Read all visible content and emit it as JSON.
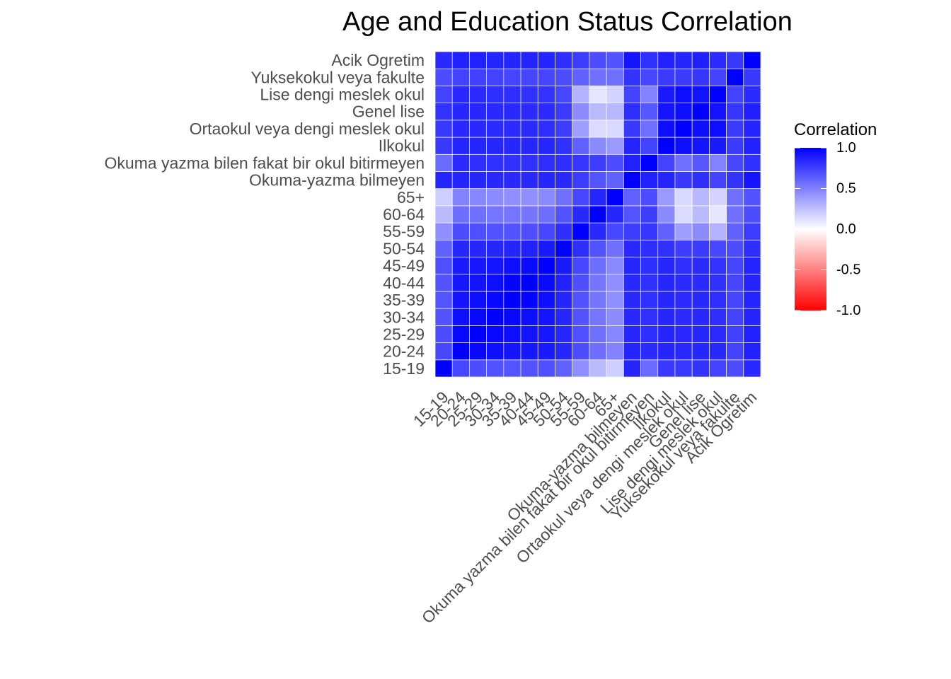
{
  "chart_data": {
    "type": "heatmap",
    "title": "Age and Education Status Correlation",
    "labels": [
      "15-19",
      "20-24",
      "25-29",
      "30-34",
      "35-39",
      "40-44",
      "45-49",
      "50-54",
      "55-59",
      "60-64",
      "65+",
      "Okuma-yazma bilmeyen",
      "Okuma yazma bilen fakat bir okul bitirmeyen",
      "Ilkokul",
      "Ortaokul veya dengi meslek okul",
      "Genel lise",
      "Lise dengi meslek okul",
      "Yuksekokul veya fakulte",
      "Acik Ogretim"
    ],
    "matrix": [
      [
        1.0,
        0.72,
        0.7,
        0.68,
        0.67,
        0.68,
        0.69,
        0.62,
        0.44,
        0.27,
        0.19,
        0.86,
        0.58,
        0.78,
        0.78,
        0.8,
        0.74,
        0.7,
        0.84
      ],
      [
        0.72,
        1.0,
        0.97,
        0.94,
        0.92,
        0.91,
        0.9,
        0.85,
        0.7,
        0.57,
        0.49,
        0.86,
        0.83,
        0.86,
        0.84,
        0.85,
        0.84,
        0.74,
        0.87
      ],
      [
        0.7,
        0.97,
        1.0,
        0.97,
        0.95,
        0.93,
        0.91,
        0.85,
        0.69,
        0.56,
        0.47,
        0.85,
        0.82,
        0.86,
        0.84,
        0.85,
        0.83,
        0.75,
        0.87
      ],
      [
        0.68,
        0.94,
        0.97,
        1.0,
        0.97,
        0.95,
        0.92,
        0.85,
        0.68,
        0.54,
        0.45,
        0.84,
        0.81,
        0.85,
        0.83,
        0.84,
        0.82,
        0.74,
        0.86
      ],
      [
        0.67,
        0.92,
        0.95,
        0.97,
        1.0,
        0.98,
        0.94,
        0.86,
        0.68,
        0.54,
        0.44,
        0.84,
        0.81,
        0.85,
        0.83,
        0.84,
        0.82,
        0.73,
        0.86
      ],
      [
        0.68,
        0.91,
        0.93,
        0.95,
        0.98,
        1.0,
        0.96,
        0.87,
        0.69,
        0.54,
        0.44,
        0.84,
        0.81,
        0.85,
        0.83,
        0.83,
        0.81,
        0.73,
        0.86
      ],
      [
        0.69,
        0.9,
        0.91,
        0.92,
        0.94,
        0.96,
        1.0,
        0.9,
        0.72,
        0.57,
        0.46,
        0.85,
        0.82,
        0.85,
        0.82,
        0.83,
        0.8,
        0.73,
        0.86
      ],
      [
        0.62,
        0.85,
        0.85,
        0.85,
        0.86,
        0.87,
        0.9,
        1.0,
        0.82,
        0.68,
        0.56,
        0.84,
        0.82,
        0.81,
        0.76,
        0.77,
        0.72,
        0.7,
        0.82
      ],
      [
        0.44,
        0.7,
        0.69,
        0.68,
        0.68,
        0.69,
        0.72,
        0.82,
        1.0,
        0.84,
        0.72,
        0.76,
        0.79,
        0.62,
        0.38,
        0.45,
        0.3,
        0.62,
        0.76
      ],
      [
        0.27,
        0.57,
        0.56,
        0.54,
        0.54,
        0.54,
        0.57,
        0.68,
        0.84,
        1.0,
        0.85,
        0.67,
        0.76,
        0.46,
        0.14,
        0.27,
        0.1,
        0.56,
        0.7
      ],
      [
        0.19,
        0.49,
        0.47,
        0.45,
        0.44,
        0.44,
        0.46,
        0.56,
        0.72,
        0.85,
        1.0,
        0.62,
        0.7,
        0.4,
        0.15,
        0.28,
        0.17,
        0.56,
        0.68
      ],
      [
        0.86,
        0.86,
        0.85,
        0.84,
        0.84,
        0.84,
        0.85,
        0.84,
        0.76,
        0.67,
        0.62,
        1.0,
        0.87,
        0.86,
        0.78,
        0.82,
        0.74,
        0.8,
        0.92
      ],
      [
        0.58,
        0.83,
        0.82,
        0.81,
        0.81,
        0.81,
        0.82,
        0.82,
        0.79,
        0.76,
        0.7,
        0.87,
        1.0,
        0.74,
        0.56,
        0.66,
        0.49,
        0.72,
        0.81
      ],
      [
        0.78,
        0.86,
        0.86,
        0.85,
        0.85,
        0.85,
        0.85,
        0.81,
        0.62,
        0.46,
        0.4,
        0.86,
        0.74,
        1.0,
        0.95,
        0.92,
        0.9,
        0.77,
        0.87
      ],
      [
        0.78,
        0.84,
        0.84,
        0.83,
        0.83,
        0.83,
        0.82,
        0.76,
        0.38,
        0.14,
        0.15,
        0.78,
        0.56,
        0.95,
        1.0,
        0.94,
        0.95,
        0.77,
        0.86
      ],
      [
        0.8,
        0.85,
        0.85,
        0.84,
        0.84,
        0.83,
        0.83,
        0.77,
        0.45,
        0.27,
        0.28,
        0.82,
        0.66,
        0.92,
        0.94,
        1.0,
        0.93,
        0.79,
        0.88
      ],
      [
        0.74,
        0.84,
        0.83,
        0.82,
        0.82,
        0.81,
        0.8,
        0.72,
        0.3,
        0.1,
        0.17,
        0.74,
        0.49,
        0.9,
        0.95,
        0.93,
        1.0,
        0.74,
        0.83
      ],
      [
        0.7,
        0.74,
        0.75,
        0.74,
        0.73,
        0.73,
        0.73,
        0.7,
        0.62,
        0.56,
        0.56,
        0.8,
        0.72,
        0.77,
        0.77,
        0.79,
        0.74,
        1.0,
        0.78
      ],
      [
        0.84,
        0.87,
        0.87,
        0.86,
        0.86,
        0.86,
        0.86,
        0.82,
        0.76,
        0.7,
        0.68,
        0.92,
        0.81,
        0.87,
        0.86,
        0.88,
        0.83,
        0.78,
        1.0
      ]
    ],
    "legend": {
      "title": "Correlation",
      "ticks": [
        "1.0",
        "0.5",
        "0.0",
        "-0.5",
        "-1.0"
      ],
      "range": [
        -1,
        1
      ],
      "placement": "right"
    },
    "colors": {
      "low": "#ff0000",
      "mid": "#ffffff",
      "high": "#0000ff",
      "grid": "#ffffff"
    },
    "grid": false
  }
}
